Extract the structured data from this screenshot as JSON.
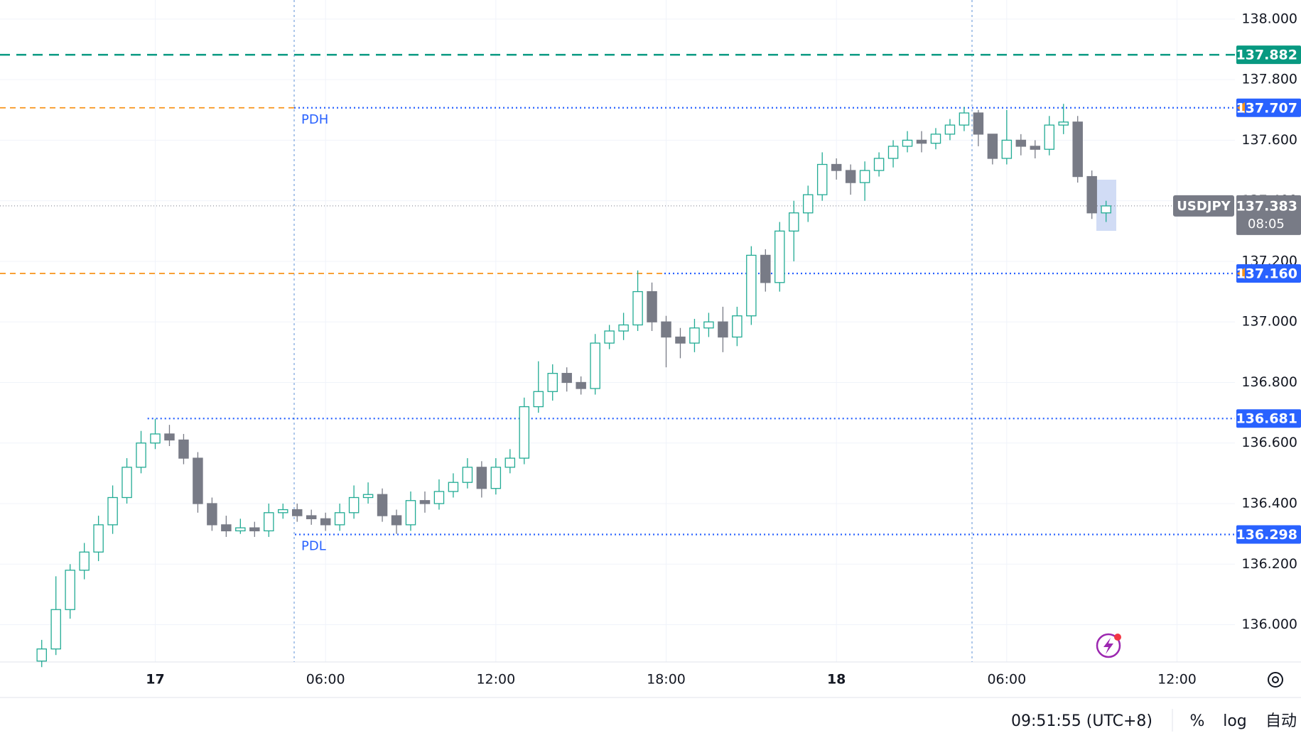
{
  "chart_data": {
    "type": "candlestick",
    "x": [
      -4,
      -3.5,
      -3,
      -2.5,
      -2,
      -1.5,
      -1,
      -0.5,
      0,
      0.5,
      1,
      1.5,
      2,
      2.5,
      3,
      3.5,
      4,
      4.5,
      5,
      5.5,
      6,
      6.5,
      7,
      7.5,
      8,
      8.5,
      9,
      9.5,
      10,
      10.5,
      11,
      11.5,
      12,
      12.5,
      13,
      13.5,
      14,
      14.5,
      15,
      15.5,
      16,
      16.5,
      17,
      17.5,
      18,
      18.5,
      19,
      19.5,
      20,
      20.5,
      21,
      21.5,
      22,
      22.5,
      23,
      23.5,
      24,
      24.5,
      25,
      25.5,
      26,
      26.5,
      27,
      27.5,
      28,
      28.5,
      29,
      29.5,
      30,
      30.5,
      31,
      31.5,
      32,
      32.5,
      33,
      33.5
    ],
    "open": [
      135.88,
      135.92,
      136.05,
      136.18,
      136.24,
      136.33,
      136.42,
      136.52,
      136.6,
      136.63,
      136.61,
      136.55,
      136.4,
      136.33,
      136.31,
      136.32,
      136.31,
      136.37,
      136.38,
      136.36,
      136.35,
      136.33,
      136.37,
      136.42,
      136.43,
      136.36,
      136.33,
      136.41,
      136.4,
      136.44,
      136.47,
      136.52,
      136.45,
      136.52,
      136.55,
      136.72,
      136.77,
      136.83,
      136.8,
      136.78,
      136.93,
      136.97,
      136.99,
      137.1,
      137.0,
      136.95,
      136.93,
      136.98,
      137.0,
      136.95,
      137.02,
      137.22,
      137.13,
      137.3,
      137.36,
      137.42,
      137.52,
      137.5,
      137.46,
      137.5,
      137.54,
      137.58,
      137.6,
      137.59,
      137.62,
      137.65,
      137.69,
      137.62,
      137.54,
      137.6,
      137.58,
      137.57,
      137.65,
      137.66,
      137.48,
      137.36
    ],
    "high": [
      135.95,
      136.16,
      136.2,
      136.27,
      136.36,
      136.46,
      136.55,
      136.64,
      136.68,
      136.66,
      136.63,
      136.57,
      136.42,
      136.36,
      136.35,
      136.34,
      136.4,
      136.4,
      136.4,
      136.38,
      136.37,
      136.4,
      136.46,
      136.47,
      136.45,
      136.38,
      136.44,
      136.44,
      136.48,
      136.5,
      136.55,
      136.54,
      136.55,
      136.58,
      136.75,
      136.87,
      136.86,
      136.85,
      136.82,
      136.96,
      136.99,
      137.03,
      137.17,
      137.13,
      137.02,
      136.98,
      137.01,
      137.03,
      137.05,
      137.05,
      137.25,
      137.24,
      137.33,
      137.4,
      137.45,
      137.56,
      137.54,
      137.52,
      137.53,
      137.56,
      137.6,
      137.63,
      137.63,
      137.64,
      137.67,
      137.71,
      137.7,
      137.6,
      137.7,
      137.62,
      137.6,
      137.68,
      137.72,
      137.68,
      137.5,
      137.4
    ],
    "low": [
      135.86,
      135.9,
      136.02,
      136.15,
      136.21,
      136.3,
      136.4,
      136.5,
      136.58,
      136.59,
      136.53,
      136.37,
      136.31,
      136.29,
      136.3,
      136.29,
      136.29,
      136.35,
      136.34,
      136.33,
      136.31,
      136.31,
      136.35,
      136.4,
      136.34,
      136.3,
      136.31,
      136.37,
      136.38,
      136.42,
      136.45,
      136.42,
      136.43,
      136.5,
      136.53,
      136.7,
      136.74,
      136.77,
      136.76,
      136.76,
      136.91,
      136.94,
      136.97,
      136.97,
      136.85,
      136.88,
      136.9,
      136.95,
      136.9,
      136.92,
      136.99,
      137.1,
      137.1,
      137.2,
      137.33,
      137.4,
      137.47,
      137.42,
      137.4,
      137.48,
      137.51,
      137.56,
      137.56,
      137.57,
      137.6,
      137.63,
      137.58,
      137.52,
      137.52,
      137.55,
      137.54,
      137.55,
      137.62,
      137.46,
      137.34,
      137.33
    ],
    "close": [
      135.92,
      136.05,
      136.18,
      136.24,
      136.33,
      136.42,
      136.52,
      136.6,
      136.63,
      136.61,
      136.55,
      136.4,
      136.33,
      136.31,
      136.32,
      136.31,
      136.37,
      136.38,
      136.36,
      136.35,
      136.33,
      136.37,
      136.42,
      136.43,
      136.36,
      136.33,
      136.41,
      136.4,
      136.44,
      136.47,
      136.52,
      136.45,
      136.52,
      136.55,
      136.72,
      136.77,
      136.83,
      136.8,
      136.78,
      136.93,
      136.97,
      136.99,
      137.1,
      137.0,
      136.95,
      136.93,
      136.98,
      137.0,
      136.95,
      137.02,
      137.22,
      137.13,
      137.3,
      137.36,
      137.42,
      137.52,
      137.5,
      137.46,
      137.5,
      137.54,
      137.58,
      137.6,
      137.59,
      137.62,
      137.65,
      137.69,
      137.62,
      137.54,
      137.6,
      137.58,
      137.57,
      137.65,
      137.66,
      137.48,
      137.36,
      137.383
    ],
    "up_color": "#22ab94",
    "down_color": "#787b86",
    "xlim": [
      -5.47,
      38.04
    ],
    "xticks": [
      {
        "value": 0,
        "label": "17"
      },
      {
        "value": 6,
        "label": "06:00"
      },
      {
        "value": 12,
        "label": "12:00"
      },
      {
        "value": 18,
        "label": "18:00"
      },
      {
        "value": 24,
        "label": "18"
      },
      {
        "value": 30,
        "label": "06:00"
      },
      {
        "value": 36,
        "label": "12:00"
      }
    ],
    "ylim": [
      135.877,
      138.063
    ],
    "yticks": [
      {
        "value": 136,
        "label": "136.000"
      },
      {
        "value": 136.2,
        "label": "136.200"
      },
      {
        "value": 136.4,
        "label": "136.400"
      },
      {
        "value": 136.6,
        "label": "136.600"
      },
      {
        "value": 136.8,
        "label": "136.800"
      },
      {
        "value": 137,
        "label": "137.000"
      },
      {
        "value": 137.2,
        "label": "137.200"
      },
      {
        "value": 137.4,
        "label": "137.400"
      },
      {
        "value": 137.6,
        "label": "137.600"
      },
      {
        "value": 137.8,
        "label": "137.800"
      },
      {
        "value": 138,
        "label": "138.000"
      }
    ],
    "grid": true,
    "levels": [
      {
        "value": 137.882,
        "label": "137.882",
        "color": "#089981"
      },
      {
        "value": 137.707,
        "label": "137.707",
        "name": "PDH",
        "color": "#2962ff"
      },
      {
        "value": 137.16,
        "label": "137.160",
        "color": "#2962ff"
      },
      {
        "value": 136.681,
        "label": "136.681",
        "color": "#2962ff"
      },
      {
        "value": 136.298,
        "label": "136.298",
        "name": "PDL",
        "color": "#2962ff"
      }
    ],
    "current_price": {
      "value": 137.383,
      "label": "137.383",
      "name": "USDJPY",
      "countdown": "08:05",
      "color": "#787b86"
    }
  },
  "status_bar": {
    "time": "09:51:55 (UTC+8)",
    "percent": "%",
    "log": "log",
    "auto": "自动"
  }
}
